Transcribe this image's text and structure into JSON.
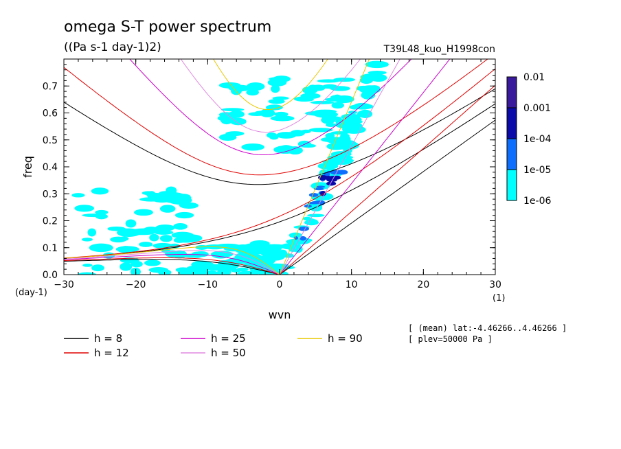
{
  "title": "omega S-T power spectrum",
  "units": "((Pa s-1 day-1)2)",
  "run_name": "T39L48_kuo_H1998con",
  "chart_data": {
    "type": "heatmap",
    "xlabel": "wvn",
    "ylabel": "freq",
    "x_unit": "(1)",
    "y_unit": "(day-1)",
    "xlim": [
      -30,
      30
    ],
    "ylim": [
      0,
      0.8
    ],
    "xticks": [
      "-30",
      "-20",
      "-10",
      "0",
      "10",
      "20",
      "30"
    ],
    "xtick_values": [
      -30,
      -20,
      -10,
      0,
      10,
      20,
      30
    ],
    "yticks": [
      "0.0",
      "0.1",
      "0.2",
      "0.3",
      "0.4",
      "0.5",
      "0.6",
      "0.7"
    ],
    "ytick_values": [
      0,
      0.1,
      0.2,
      0.3,
      0.4,
      0.5,
      0.6,
      0.7
    ],
    "colorbar": {
      "levels": [
        "1e-06",
        "1e-05",
        "1e-04",
        "0.001",
        "0.01"
      ],
      "colors": [
        "#00ffff",
        "#0d6efd",
        "#0a0aa8",
        "#3a1a9c"
      ]
    },
    "series": [
      {
        "name": "h =  8",
        "h": 8,
        "color": "#000000"
      },
      {
        "name": "h = 12",
        "h": 12,
        "color": "#e00000"
      },
      {
        "name": "h = 25",
        "h": 25,
        "color": "#cc00cc"
      },
      {
        "name": "h = 50",
        "h": 50,
        "color": "#e088e0"
      },
      {
        "name": "h = 90",
        "h": 90,
        "color": "#e8c800"
      }
    ],
    "power_regions": [
      {
        "level": 1,
        "x": [
          -28,
          -12
        ],
        "y": [
          0.0,
          0.32
        ]
      },
      {
        "level": 1,
        "x": [
          -12,
          0
        ],
        "y": [
          0.0,
          0.12
        ]
      },
      {
        "level": 1,
        "x": [
          0,
          14
        ],
        "y": [
          0.0,
          0.78
        ]
      },
      {
        "level": 1,
        "x": [
          -8,
          10
        ],
        "y": [
          0.46,
          0.73
        ]
      },
      {
        "level": 2,
        "x": [
          2,
          9
        ],
        "y": [
          0.12,
          0.38
        ]
      },
      {
        "level": 3,
        "x": [
          6,
          8
        ],
        "y": [
          0.26,
          0.36
        ]
      }
    ],
    "annotations": [
      "[ (mean) lat:-4.46266..4.46266 ]",
      "[ plev=50000 Pa ]"
    ]
  }
}
